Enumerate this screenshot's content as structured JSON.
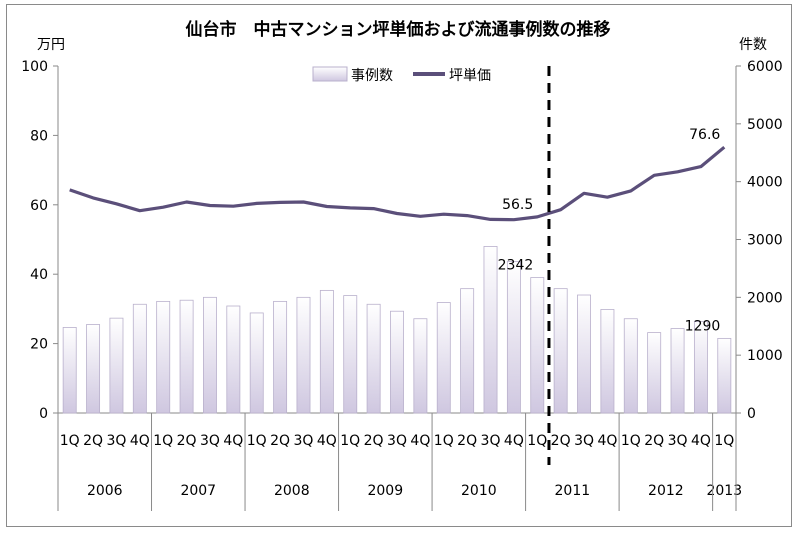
{
  "chart_data": {
    "type": "bar+line",
    "title": "仙台市　中古マンション坪単価および流通事例数の推移",
    "y_left_unit": "万円",
    "y_right_unit": "件数",
    "y_left_ticks": [
      0,
      20,
      40,
      60,
      80,
      100
    ],
    "y_right_ticks": [
      0,
      1000,
      2000,
      3000,
      4000,
      5000,
      6000
    ],
    "ylim_left": [
      0,
      100
    ],
    "ylim_right": [
      0,
      6000
    ],
    "categories": [
      "1Q",
      "2Q",
      "3Q",
      "4Q",
      "1Q",
      "2Q",
      "3Q",
      "4Q",
      "1Q",
      "2Q",
      "3Q",
      "4Q",
      "1Q",
      "2Q",
      "3Q",
      "4Q",
      "1Q",
      "2Q",
      "3Q",
      "4Q",
      "1Q",
      "2Q",
      "3Q",
      "4Q",
      "1Q",
      "2Q",
      "3Q",
      "4Q",
      "1Q"
    ],
    "years": [
      {
        "label": "2006",
        "count": 4
      },
      {
        "label": "2007",
        "count": 4
      },
      {
        "label": "2008",
        "count": 4
      },
      {
        "label": "2009",
        "count": 4
      },
      {
        "label": "2010",
        "count": 4
      },
      {
        "label": "2011",
        "count": 4
      },
      {
        "label": "2012",
        "count": 4
      },
      {
        "label": "2013",
        "count": 1
      }
    ],
    "legend": {
      "bar": "事例数",
      "line": "坪単価",
      "position": "top"
    },
    "series": [
      {
        "name": "事例数",
        "kind": "bar",
        "axis": "right",
        "values": [
          1480,
          1530,
          1640,
          1880,
          1930,
          1950,
          2000,
          1850,
          1730,
          1930,
          2000,
          2120,
          2030,
          1880,
          1760,
          1630,
          1910,
          2150,
          2880,
          2620,
          2342,
          2150,
          2040,
          1790,
          1630,
          1390,
          1460,
          1580,
          1290
        ]
      },
      {
        "name": "坪単価",
        "kind": "line",
        "axis": "left",
        "values": [
          64.3,
          62.0,
          60.3,
          58.3,
          59.3,
          60.8,
          59.8,
          59.6,
          60.4,
          60.7,
          60.8,
          59.5,
          59.1,
          58.9,
          57.5,
          56.7,
          57.3,
          56.9,
          55.8,
          55.7,
          56.5,
          58.6,
          63.3,
          62.2,
          64.0,
          68.5,
          69.5,
          71.0,
          76.6
        ]
      }
    ],
    "annotations": [
      {
        "text": "56.5",
        "series": "坪単価",
        "index": 20
      },
      {
        "text": "76.6",
        "series": "坪単価",
        "index": 28
      },
      {
        "text": "2342",
        "series": "事例数",
        "index": 20
      },
      {
        "text": "1290",
        "series": "事例数",
        "index": 28
      }
    ],
    "divider_after_index": 20,
    "colors": {
      "bar_fill_top": "#ffffff",
      "bar_fill_bottom": "#cfc7e0",
      "bar_stroke": "#b9b0cc",
      "line": "#5b4f7a",
      "divider": "#000000"
    }
  }
}
